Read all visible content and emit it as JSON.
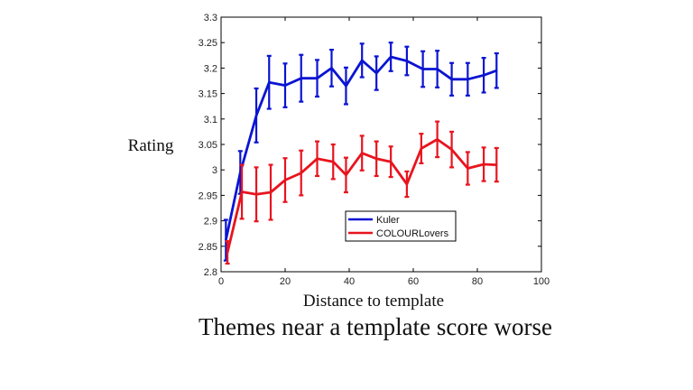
{
  "caption": "Themes near a template score worse",
  "chart_data": {
    "type": "line",
    "xlabel": "Distance to template",
    "ylabel": "Rating",
    "xlim": [
      0,
      100
    ],
    "ylim": [
      2.8,
      3.3
    ],
    "xticks": [
      0,
      20,
      40,
      60,
      80,
      100
    ],
    "yticks": [
      2.8,
      2.85,
      2.9,
      2.95,
      3,
      3.05,
      3.1,
      3.15,
      3.2,
      3.25,
      3.3
    ],
    "ytick_labels": [
      "2.8",
      "2.85",
      "2.9",
      "2.95",
      "3",
      "3.05",
      "3.1",
      "3.15",
      "3.2",
      "3.25",
      "3.3"
    ],
    "xtick_labels": [
      "0",
      "20",
      "40",
      "60",
      "80",
      "100"
    ],
    "legend_position": "lower-right",
    "series": [
      {
        "name": "Kuler",
        "color": "#0a14d2",
        "x": [
          1.5,
          6,
          11,
          15,
          20,
          25,
          30,
          34.5,
          39,
          44,
          48.5,
          53,
          58,
          63,
          67.5,
          72,
          77,
          82,
          86
        ],
        "y": [
          2.862,
          2.995,
          3.107,
          3.172,
          3.166,
          3.18,
          3.18,
          3.2,
          3.165,
          3.215,
          3.19,
          3.222,
          3.214,
          3.198,
          3.198,
          3.178,
          3.178,
          3.186,
          3.195
        ],
        "err": [
          0.04,
          0.042,
          0.053,
          0.052,
          0.043,
          0.046,
          0.036,
          0.036,
          0.036,
          0.033,
          0.033,
          0.028,
          0.028,
          0.035,
          0.036,
          0.032,
          0.032,
          0.034,
          0.034
        ]
      },
      {
        "name": "COLOURLovers",
        "color": "#e8141e",
        "x": [
          2,
          6.5,
          11,
          15.5,
          20,
          25,
          30,
          35,
          39,
          44,
          48.5,
          53,
          58,
          62.5,
          67.5,
          72,
          77,
          82,
          86
        ],
        "y": [
          2.838,
          2.957,
          2.952,
          2.956,
          2.98,
          2.994,
          3.022,
          3.016,
          2.99,
          3.033,
          3.022,
          3.016,
          2.972,
          3.042,
          3.06,
          3.04,
          3.003,
          3.011,
          3.01
        ],
        "err": [
          0.022,
          0.053,
          0.053,
          0.054,
          0.043,
          0.044,
          0.034,
          0.034,
          0.034,
          0.034,
          0.034,
          0.03,
          0.025,
          0.029,
          0.035,
          0.035,
          0.032,
          0.033,
          0.033
        ]
      }
    ]
  }
}
